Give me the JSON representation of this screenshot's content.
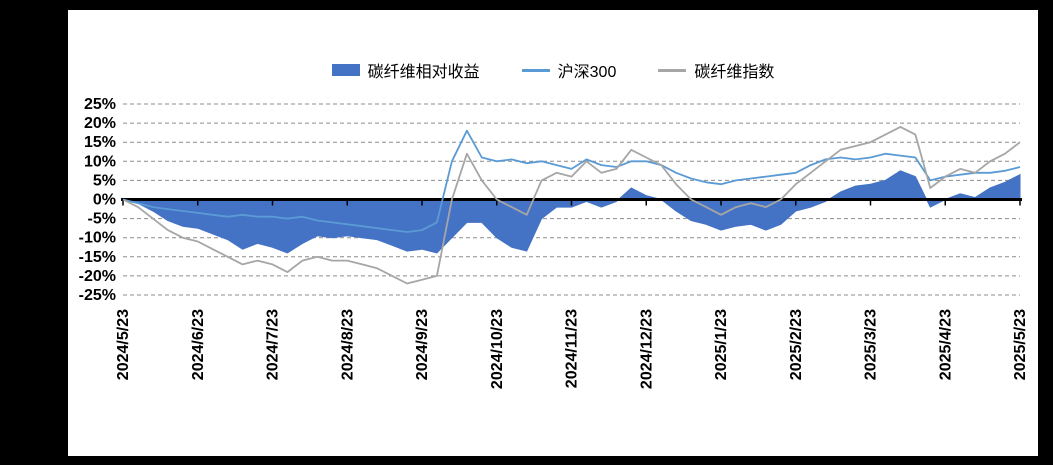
{
  "legend": [
    {
      "label": "碳纤维相对收益",
      "color": "#4472c4",
      "type": "area"
    },
    {
      "label": "沪深300",
      "color": "#5b9bd5",
      "type": "line"
    },
    {
      "label": "碳纤维指数",
      "color": "#a6a6a6",
      "type": "line"
    }
  ],
  "colors": {
    "background_frame": "#000000",
    "panel": "#ffffff",
    "gridline": "#8c8c8c",
    "zero_axis": "#000000",
    "text": "#000000"
  },
  "chart_data": {
    "type": "line",
    "title": "",
    "xlabel": "",
    "ylabel": "",
    "ylim": [
      -25,
      25
    ],
    "y_step": 5,
    "y_tick_labels": [
      "25%",
      "20%",
      "15%",
      "10%",
      "5%",
      "0%",
      "-5%",
      "-10%",
      "-15%",
      "-20%",
      "-25%"
    ],
    "x_tick_labels": [
      "2024/5/23",
      "2024/6/23",
      "2024/7/23",
      "2024/8/23",
      "2024/9/23",
      "2024/10/23",
      "2024/11/23",
      "2024/12/23",
      "2025/1/23",
      "2025/2/23",
      "2025/3/23",
      "2025/4/23",
      "2025/5/23"
    ],
    "grid": "dashed-horizontal",
    "legend_position": "top-center",
    "series": [
      {
        "name": "碳纤维相对收益",
        "type": "area",
        "color": "#4472c4",
        "values": [
          0,
          -1,
          -3,
          -5.5,
          -7,
          -7.5,
          -9,
          -10.5,
          -13,
          -11.5,
          -12.5,
          -14,
          -11.5,
          -9.5,
          -10,
          -9.5,
          -10,
          -10.5,
          -12,
          -13.5,
          -13,
          -14,
          -10,
          -6,
          -6,
          -10,
          -12.5,
          -13.5,
          -5,
          -2,
          -2,
          -0.5,
          -2,
          -0.5,
          3,
          1,
          0,
          -3,
          -5.5,
          -6.5,
          -8,
          -7,
          -6.5,
          -8,
          -6.5,
          -3,
          -2,
          -0.5,
          2,
          3.5,
          4,
          5,
          7.5,
          6,
          -2,
          0,
          1.5,
          0.5,
          3,
          4.5,
          6.5
        ]
      },
      {
        "name": "沪深300",
        "type": "line",
        "color": "#5b9bd5",
        "values": [
          0,
          -1,
          -2,
          -2.5,
          -3,
          -3.5,
          -4,
          -4.5,
          -4,
          -4.5,
          -4.5,
          -5,
          -4.5,
          -5.5,
          -6,
          -6.5,
          -7,
          -7.5,
          -8,
          -8.5,
          -8,
          -6,
          10,
          18,
          11,
          10,
          10.5,
          9.5,
          10,
          9,
          8,
          10.5,
          9,
          8.5,
          10,
          10,
          9,
          7,
          5.5,
          4.5,
          4,
          5,
          5.5,
          6,
          6.5,
          7,
          9,
          10.5,
          11,
          10.5,
          11,
          12,
          11.5,
          11,
          5,
          6,
          6.5,
          7,
          7,
          7.5,
          8.5
        ]
      },
      {
        "name": "碳纤维指数",
        "type": "line",
        "color": "#a6a6a6",
        "values": [
          0,
          -2,
          -5,
          -8,
          -10,
          -11,
          -13,
          -15,
          -17,
          -16,
          -17,
          -19,
          -16,
          -15,
          -16,
          -16,
          -17,
          -18,
          -20,
          -22,
          -21,
          -20,
          0,
          12,
          5,
          0,
          -2,
          -4,
          5,
          7,
          6,
          10,
          7,
          8,
          13,
          11,
          9,
          4,
          0,
          -2,
          -4,
          -2,
          -1,
          -2,
          0,
          4,
          7,
          10,
          13,
          14,
          15,
          17,
          19,
          17,
          3,
          6,
          8,
          7,
          10,
          12,
          15
        ]
      }
    ]
  }
}
